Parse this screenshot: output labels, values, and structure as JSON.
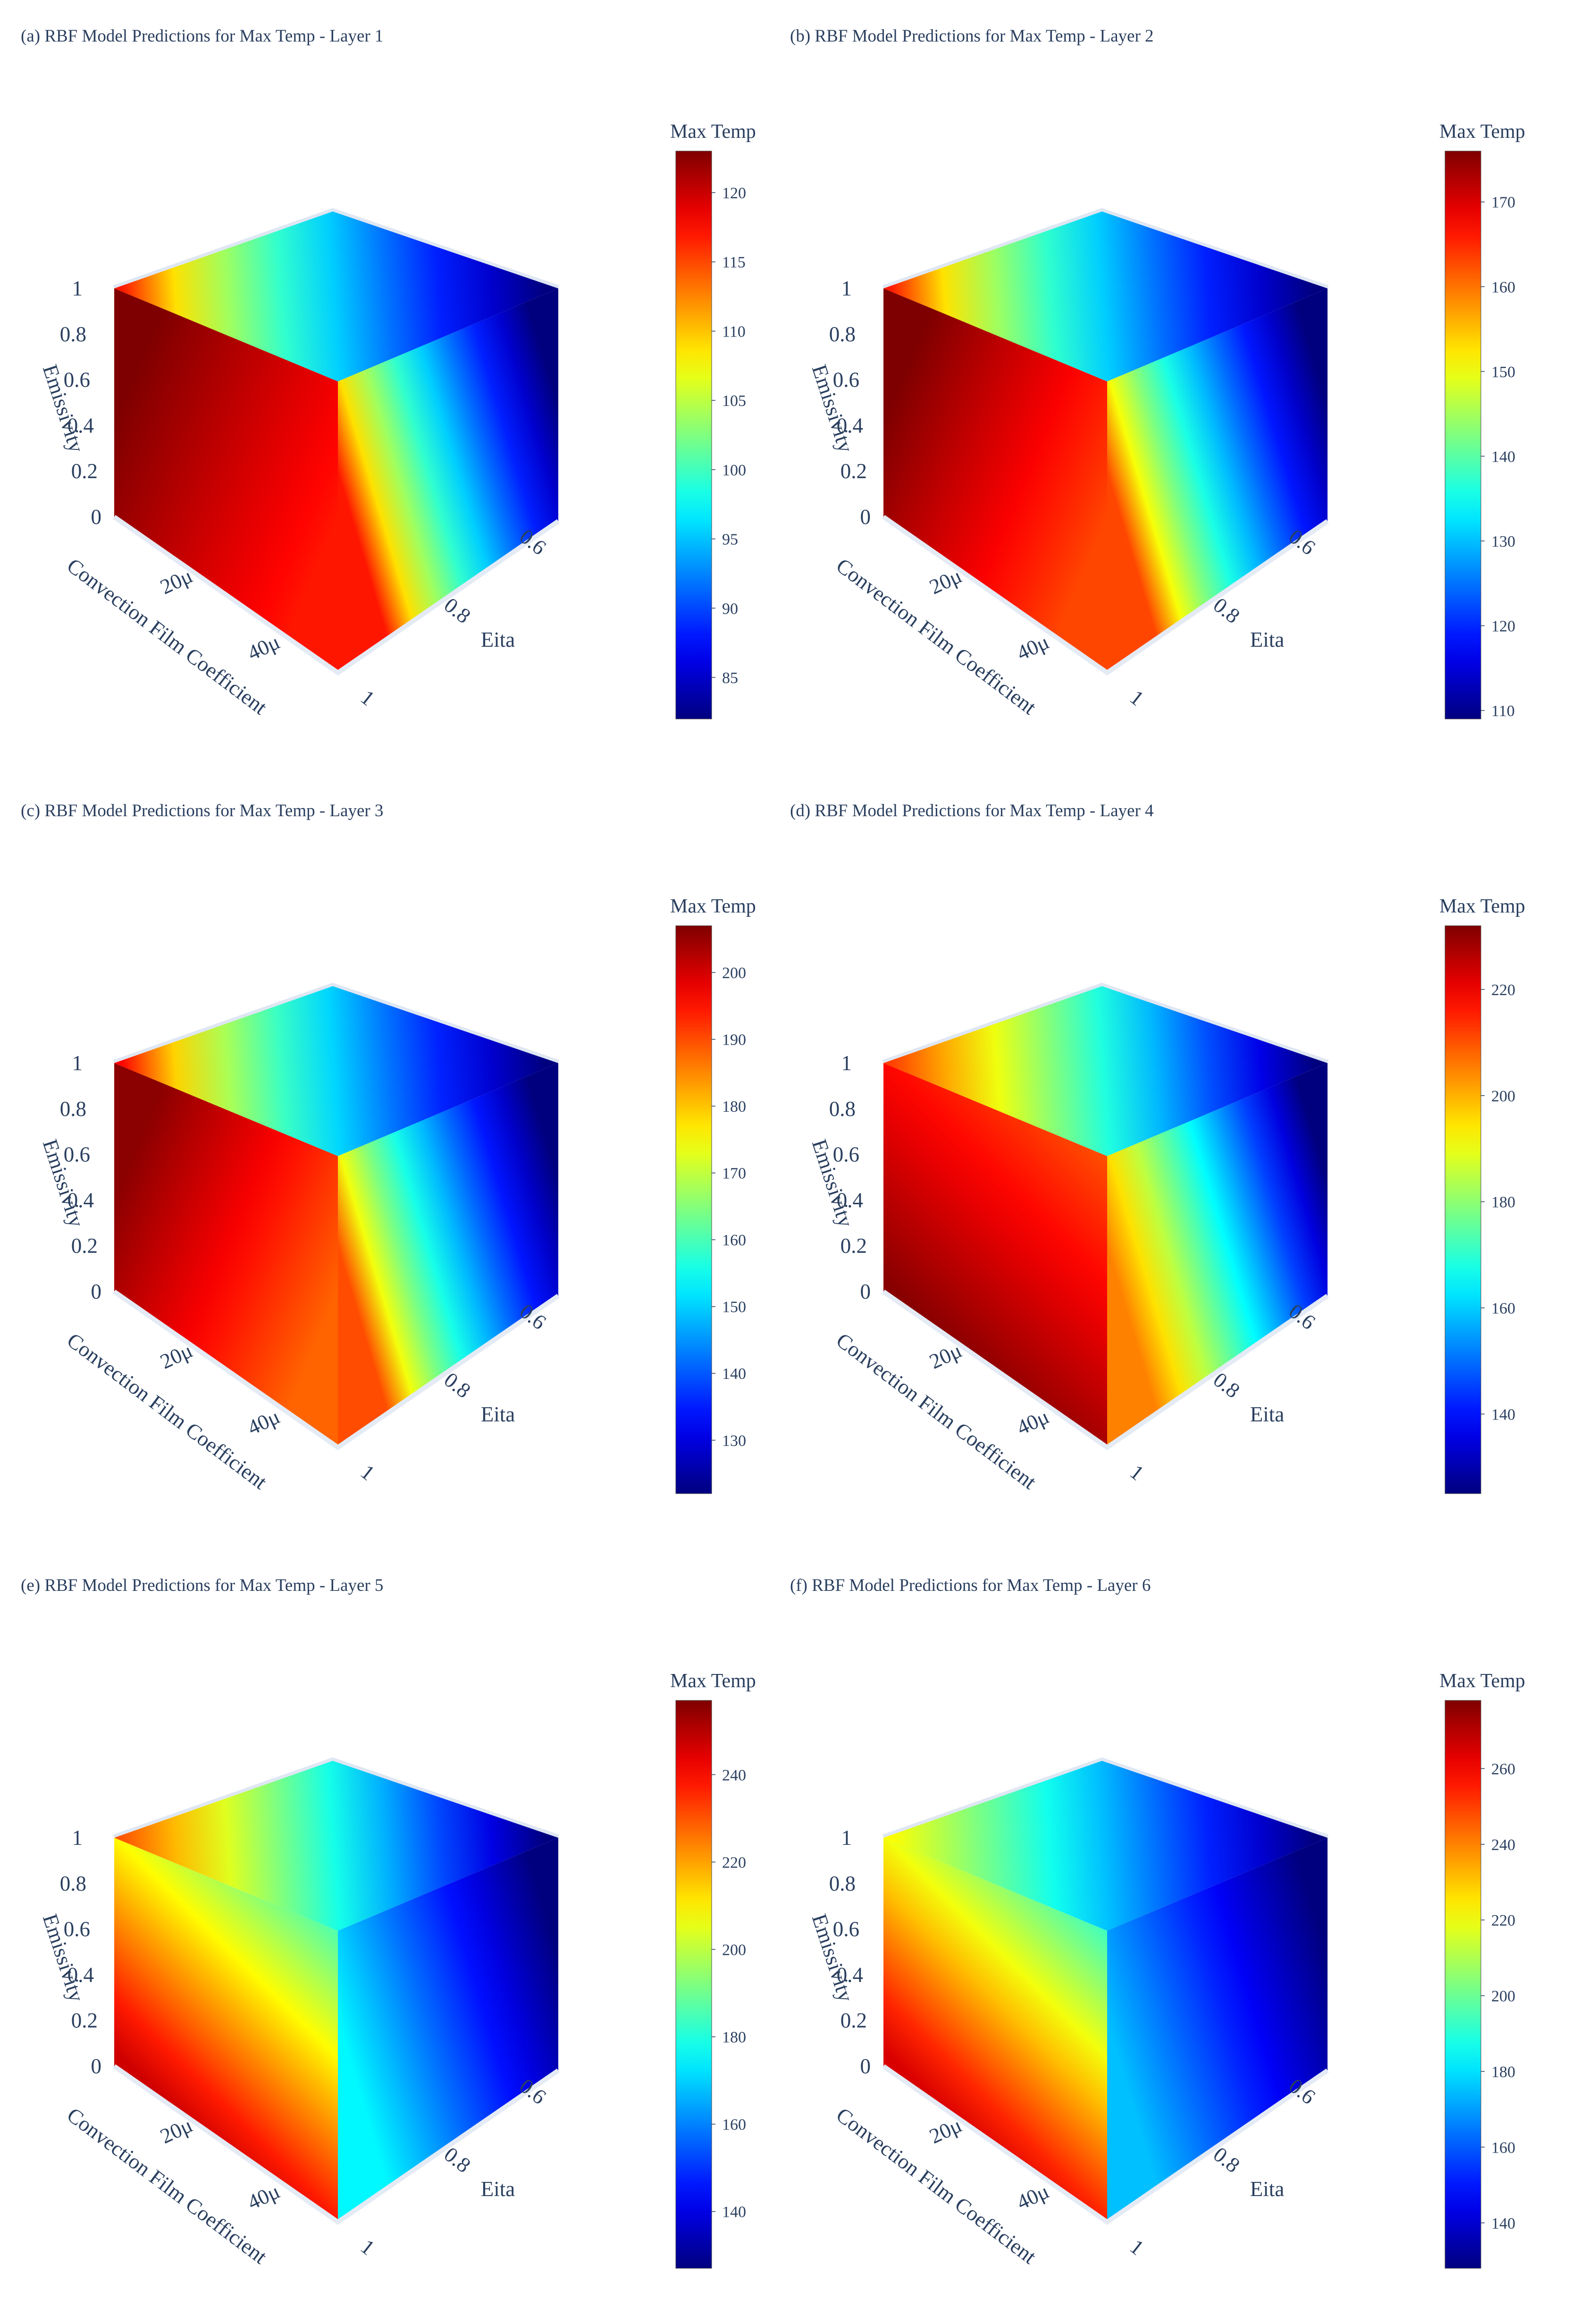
{
  "colorscale": [
    "#00007f",
    "#0000ff",
    "#007fff",
    "#00ffff",
    "#7fff7f",
    "#ffff00",
    "#ff7f00",
    "#ff0000",
    "#7f0000"
  ],
  "chart_data": [
    {
      "type": "heatmap",
      "title": "(a) RBF Model Predictions for Max Temp - Layer 1",
      "colorbar_title": "Max Temp",
      "colorbar_range": [
        82,
        123
      ],
      "colorbar_ticks": [
        85,
        90,
        95,
        100,
        105,
        110,
        115,
        120
      ],
      "axes": {
        "x": {
          "label": "Convection Film Coefficient",
          "ticks": [
            "20μ",
            "40μ"
          ]
        },
        "y": {
          "label": "Eita",
          "ticks": [
            "0.6",
            "0.8",
            "1"
          ]
        },
        "z": {
          "label": "Emissivity",
          "ticks": [
            "0",
            "0.2",
            "0.4",
            "0.6",
            "0.8",
            "1"
          ]
        }
      },
      "front_face_range": [
        117,
        123
      ],
      "right_face_range": [
        82,
        117
      ],
      "top_face_range": [
        82,
        117
      ],
      "gradient_shape": "step"
    },
    {
      "type": "heatmap",
      "title": "(b) RBF Model Predictions for Max Temp - Layer 2",
      "colorbar_title": "Max Temp",
      "colorbar_range": [
        109,
        176
      ],
      "colorbar_ticks": [
        110,
        120,
        130,
        140,
        150,
        160,
        170
      ],
      "axes": {
        "x": {
          "label": "Convection Film Coefficient",
          "ticks": [
            "20μ",
            "40μ"
          ]
        },
        "y": {
          "label": "Eita",
          "ticks": [
            "0.6",
            "0.8",
            "1"
          ]
        },
        "z": {
          "label": "Emissivity",
          "ticks": [
            "0",
            "0.2",
            "0.4",
            "0.6",
            "0.8",
            "1"
          ]
        }
      },
      "front_face_range": [
        163,
        176
      ],
      "right_face_range": [
        109,
        163
      ],
      "top_face_range": [
        109,
        166
      ],
      "gradient_shape": "step"
    },
    {
      "type": "heatmap",
      "title": "(c) RBF Model Predictions for Max Temp - Layer 3",
      "colorbar_title": "Max Temp",
      "colorbar_range": [
        122,
        207
      ],
      "colorbar_ticks": [
        130,
        140,
        150,
        160,
        170,
        180,
        190,
        200
      ],
      "axes": {
        "x": {
          "label": "Convection Film Coefficient",
          "ticks": [
            "20μ",
            "40μ"
          ]
        },
        "y": {
          "label": "Eita",
          "ticks": [
            "0.6",
            "0.8",
            "1"
          ]
        },
        "z": {
          "label": "Emissivity",
          "ticks": [
            "0",
            "0.2",
            "0.4",
            "0.6",
            "0.8",
            "1"
          ]
        }
      },
      "front_face_range": [
        188,
        206
      ],
      "right_face_range": [
        122,
        190
      ],
      "top_face_range": [
        122,
        196
      ],
      "gradient_shape": "step"
    },
    {
      "type": "heatmap",
      "title": "(d) RBF Model Predictions for Max Temp - Layer 4",
      "colorbar_title": "Max Temp",
      "colorbar_range": [
        125,
        232
      ],
      "colorbar_ticks": [
        140,
        160,
        180,
        200,
        220
      ],
      "axes": {
        "x": {
          "label": "Convection Film Coefficient",
          "ticks": [
            "20μ",
            "40μ"
          ]
        },
        "y": {
          "label": "Eita",
          "ticks": [
            "0.6",
            "0.8",
            "1"
          ]
        },
        "z": {
          "label": "Emissivity",
          "ticks": [
            "0",
            "0.2",
            "0.4",
            "0.6",
            "0.8",
            "1"
          ]
        }
      },
      "front_face_range": [
        205,
        231
      ],
      "right_face_range": [
        125,
        205
      ],
      "top_face_range": [
        125,
        212
      ],
      "gradient_shape": "diagonal"
    },
    {
      "type": "heatmap",
      "title": "(e) RBF Model Predictions for Max Temp - Layer 5",
      "colorbar_title": "Max Temp",
      "colorbar_range": [
        127,
        257
      ],
      "colorbar_ticks": [
        140,
        160,
        180,
        200,
        220,
        240
      ],
      "axes": {
        "x": {
          "label": "Convection Film Coefficient",
          "ticks": [
            "20μ",
            "40μ"
          ]
        },
        "y": {
          "label": "Eita",
          "ticks": [
            "0.6",
            "0.8",
            "1"
          ]
        },
        "z": {
          "label": "Emissivity",
          "ticks": [
            "0",
            "0.2",
            "0.4",
            "0.6",
            "0.8",
            "1"
          ]
        }
      },
      "front_face_range": [
        170,
        247
      ],
      "right_face_range": [
        127,
        175
      ],
      "top_face_range": [
        127,
        230
      ],
      "gradient_shape": "diagonal"
    },
    {
      "type": "heatmap",
      "title": "(f) RBF Model Predictions for Max Temp - Layer 6",
      "colorbar_title": "Max Temp",
      "colorbar_range": [
        128,
        278
      ],
      "colorbar_ticks": [
        140,
        160,
        180,
        200,
        220,
        240,
        260
      ],
      "axes": {
        "x": {
          "label": "Convection Film Coefficient",
          "ticks": [
            "20μ",
            "40μ"
          ]
        },
        "y": {
          "label": "Eita",
          "ticks": [
            "0.6",
            "0.8",
            "1"
          ]
        },
        "z": {
          "label": "Emissivity",
          "ticks": [
            "0",
            "0.2",
            "0.4",
            "0.6",
            "0.8",
            "1"
          ]
        }
      },
      "front_face_range": [
        175,
        265
      ],
      "right_face_range": [
        128,
        175
      ],
      "top_face_range": [
        128,
        222
      ],
      "gradient_shape": "diagonal"
    }
  ]
}
